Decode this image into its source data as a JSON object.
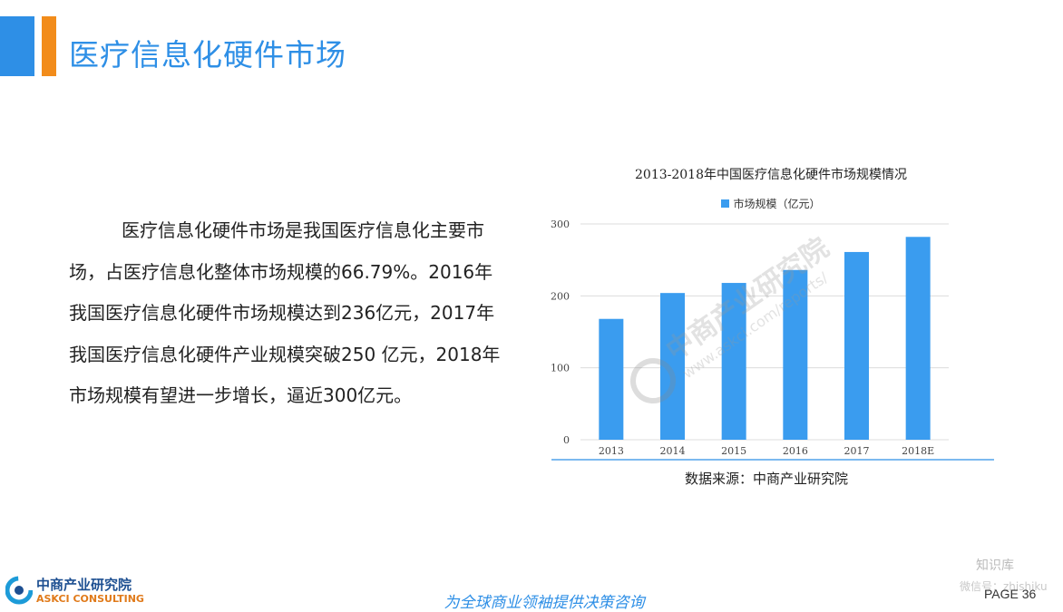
{
  "header": {
    "title": "医疗信息化硬件市场"
  },
  "body": {
    "paragraph": "医疗信息化硬件市场是我国医疗信息化主要市场，占医疗信息化整体市场规模的66.79%。2016年我国医疗信息化硬件市场规模达到236亿元，2017年我国医疗信息化硬件产业规模突破250 亿元，2018年市场规模有望进一步增长，逼近300亿元。"
  },
  "chart_data": {
    "type": "bar",
    "title": "2013-2018年中国医疗信息化硬件市场规模情况",
    "categories": [
      "2013",
      "2014",
      "2015",
      "2016",
      "2017",
      "2018E"
    ],
    "series": [
      {
        "name": "市场规模（亿元）",
        "values": [
          168,
          204,
          218,
          236,
          261,
          282
        ]
      }
    ],
    "ylim": [
      0,
      300
    ],
    "yticks": [
      0,
      100,
      200,
      300
    ],
    "grid": true,
    "legend": "top-center",
    "color": "#3a9cef"
  },
  "source": "数据来源：中商产业研究院",
  "watermark": {
    "cn": "中商产业研究院",
    "url": "www.askci.com/reports/"
  },
  "footer": {
    "logo_cn": "中商产业研究院",
    "logo_en": "ASKCI CONSULTING",
    "slogan": "为全球商业领袖提供决策咨询",
    "page": "PAGE  36",
    "corner_mark": "知识库",
    "corner_mark2": "微信号：zhishiku"
  }
}
